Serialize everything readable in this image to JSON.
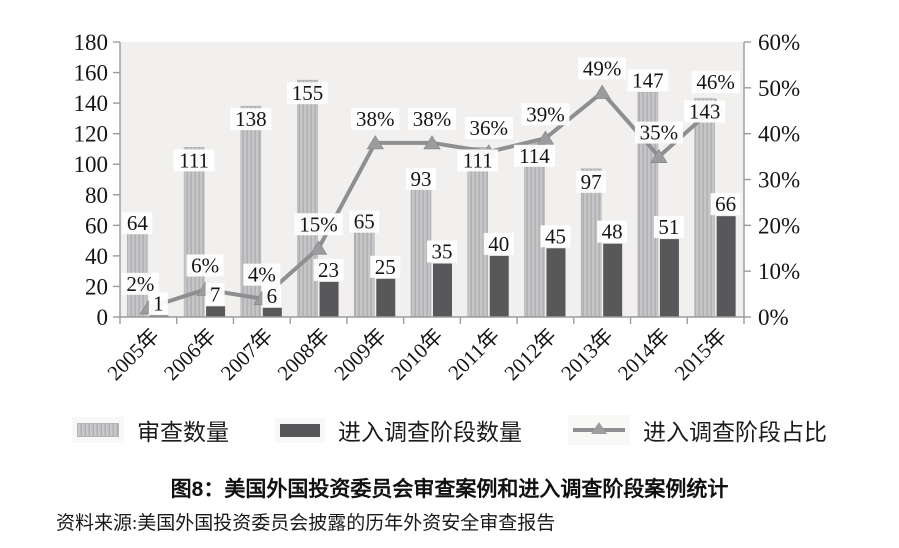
{
  "figure": {
    "title": "图8：美国外国投资委员会审查案例和进入调查阶段案例统计",
    "source": "资料来源:美国外国投资委员会披露的历年外资安全审查报告"
  },
  "chart_data": {
    "type": "combo-bar-line",
    "categories": [
      "2005年",
      "2006年",
      "2007年",
      "2008年",
      "2009年",
      "2010年",
      "2011年",
      "2012年",
      "2013年",
      "2014年",
      "2015年"
    ],
    "series": [
      {
        "name": "审查数量",
        "type": "bar",
        "axis": "left",
        "values": [
          64,
          111,
          138,
          155,
          65,
          93,
          111,
          114,
          97,
          147,
          143
        ]
      },
      {
        "name": "进入调查阶段数量",
        "type": "bar",
        "axis": "left",
        "values": [
          1,
          7,
          6,
          23,
          25,
          35,
          40,
          45,
          48,
          51,
          66
        ]
      },
      {
        "name": "进入调查阶段占比",
        "type": "line",
        "axis": "right",
        "values": [
          2,
          6,
          4,
          15,
          38,
          38,
          36,
          39,
          49,
          35,
          46
        ],
        "labels": [
          "2%",
          "6%",
          "4%",
          "15%",
          "38%",
          "38%",
          "36%",
          "39%",
          "49%",
          "35%",
          "46%"
        ]
      }
    ],
    "left_axis": {
      "min": 0,
      "max": 180,
      "step": 20,
      "tick_labels": [
        "0",
        "20",
        "40",
        "60",
        "80",
        "100",
        "120",
        "140",
        "160",
        "180"
      ]
    },
    "right_axis": {
      "min": 0,
      "max": 60,
      "step": 10,
      "tick_labels": [
        "0%",
        "10%",
        "20%",
        "30%",
        "40%",
        "50%",
        "60%"
      ]
    },
    "grid": false,
    "legend_position": "bottom",
    "label_placement_light": [
      "edge",
      "inside",
      "inside",
      "inside",
      "edge",
      "edge",
      "inside",
      "inside",
      "inside",
      "above",
      "inside"
    ],
    "colors": {
      "bar_light": "#c6c6c8",
      "bar_light_stripe": "#b1b1b3",
      "bar_dark": "#58585a",
      "line": "#8f8f91",
      "marker": "#9c9c9e",
      "plot_bg": "#f1f0ee",
      "axis": "#9b9b9b",
      "label_text": "#141414",
      "label_bg": "#ffffff"
    }
  }
}
